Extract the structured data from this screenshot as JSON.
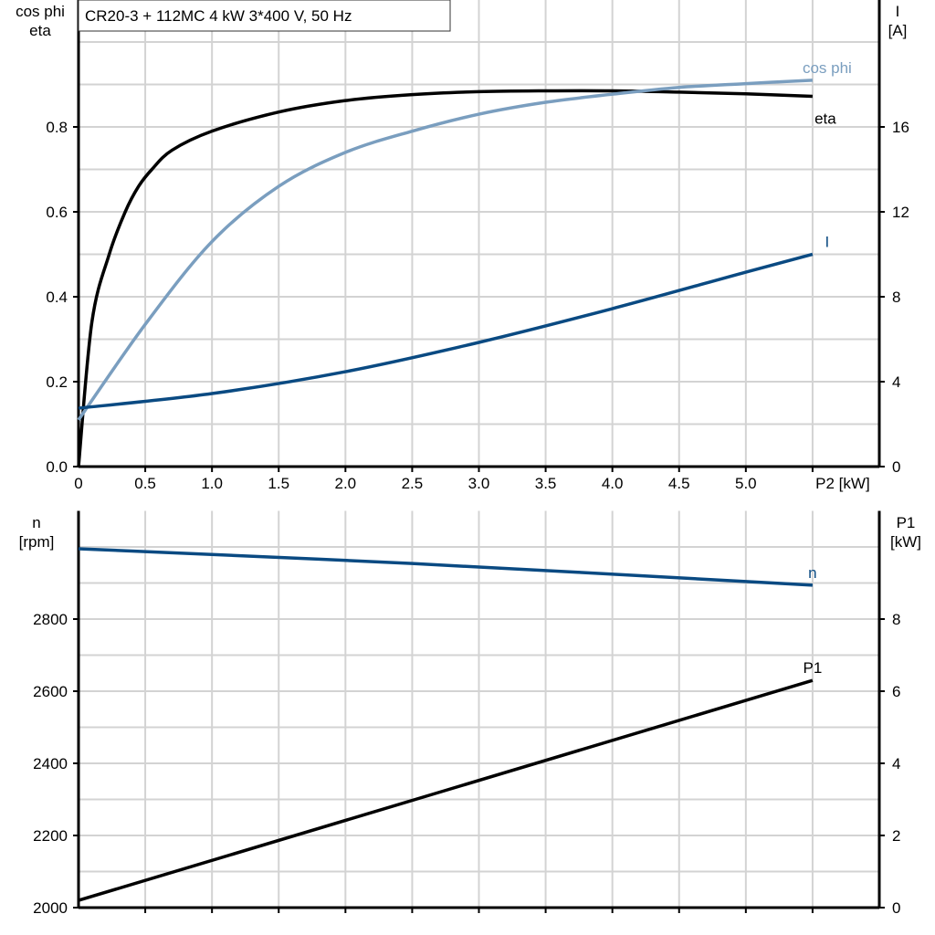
{
  "title": "CR20-3 + 112MC   4 kW   3*400 V, 50 Hz",
  "colors": {
    "eta": "#000000",
    "cos_phi": "#7a9ebf",
    "I": "#0a4a82",
    "n": "#0a4a82",
    "P1": "#000000",
    "grid": "#d3d3d3"
  },
  "chart_data": [
    {
      "type": "line",
      "title": "CR20-3 + 112MC   4 kW   3*400 V, 50 Hz",
      "ylabel_left": [
        "cos phi",
        "eta"
      ],
      "ylabel_right": [
        "I",
        "[A]"
      ],
      "xlabel": "P2 [kW]",
      "xlim": [
        0,
        6
      ],
      "ylim_left": [
        0,
        1.1
      ],
      "ylim_right": [
        0,
        22
      ],
      "x_ticks": [
        "0",
        "0.5",
        "1.0",
        "1.5",
        "2.0",
        "2.5",
        "3.0",
        "3.5",
        "4.0",
        "4.5",
        "5.0"
      ],
      "y_left_ticks": [
        "0.0",
        "0.2",
        "0.4",
        "0.6",
        "0.8"
      ],
      "y_right_ticks": [
        "0",
        "4",
        "8",
        "12",
        "16"
      ],
      "grid": true,
      "series": [
        {
          "name": "eta",
          "axis": "left",
          "color": "#000000",
          "x": [
            0,
            0.1,
            0.23,
            0.35,
            0.45,
            0.55,
            0.7,
            1.0,
            1.5,
            2.0,
            2.5,
            3.0,
            3.5,
            4.0,
            4.5,
            5.0,
            5.5
          ],
          "y": [
            0,
            0.34,
            0.5,
            0.6,
            0.66,
            0.7,
            0.745,
            0.79,
            0.835,
            0.862,
            0.876,
            0.883,
            0.885,
            0.885,
            0.882,
            0.878,
            0.872
          ]
        },
        {
          "name": "cos phi",
          "axis": "left",
          "color": "#7a9ebf",
          "x": [
            0,
            0.5,
            1.0,
            1.5,
            2.0,
            2.5,
            3.0,
            3.5,
            4.0,
            4.5,
            5.0,
            5.5
          ],
          "y": [
            0.11,
            0.335,
            0.53,
            0.66,
            0.74,
            0.79,
            0.83,
            0.858,
            0.877,
            0.893,
            0.902,
            0.91
          ]
        },
        {
          "name": "I",
          "axis": "right",
          "color": "#0a4a82",
          "x": [
            0,
            1.0,
            2.0,
            3.0,
            4.0,
            5.0,
            5.5
          ],
          "y": [
            2.75,
            3.44,
            4.47,
            5.85,
            7.44,
            9.16,
            10.0
          ]
        }
      ]
    },
    {
      "type": "line",
      "ylabel_left": [
        "n",
        "[rpm]"
      ],
      "ylabel_right": [
        "P1",
        "[kW]"
      ],
      "xlim": [
        0,
        6
      ],
      "ylim_left": [
        2000,
        3100
      ],
      "ylim_right": [
        0,
        11
      ],
      "y_left_ticks": [
        "2000",
        "2200",
        "2400",
        "2600",
        "2800"
      ],
      "y_right_ticks": [
        "0",
        "2",
        "4",
        "6",
        "8"
      ],
      "grid": true,
      "series": [
        {
          "name": "n",
          "axis": "left",
          "color": "#0a4a82",
          "x": [
            0,
            2.5,
            5.5
          ],
          "y": [
            2995,
            2954,
            2894
          ]
        },
        {
          "name": "P1",
          "axis": "right",
          "color": "#000000",
          "x": [
            0,
            5.5
          ],
          "y": [
            0.2,
            6.3
          ]
        }
      ]
    }
  ]
}
